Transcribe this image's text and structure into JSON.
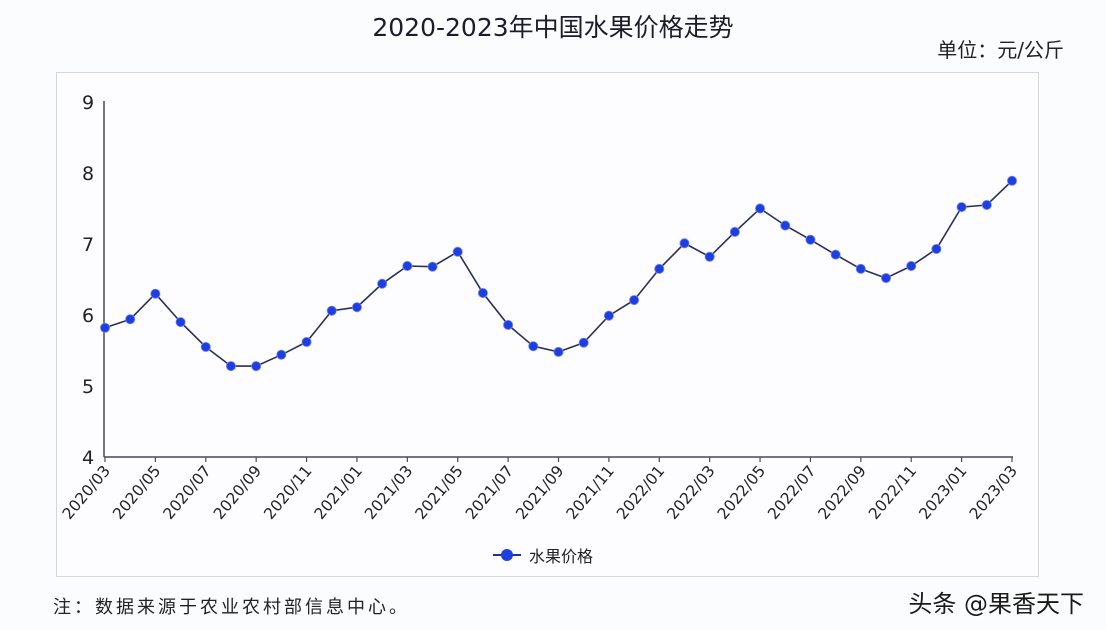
{
  "header": {
    "title": "2020-2023年中国水果价格走势",
    "unit": "单位：元/公斤"
  },
  "legend": {
    "label": "水果价格"
  },
  "footnote": "注：数据来源于农业农村部信息中心。",
  "watermark": "头条 @果香天下",
  "colors": {
    "line": "#2a2f5a",
    "marker": "#1f3ee0",
    "axis": "#4a4a5a",
    "box_border": "#d3d8e0"
  },
  "chart_data": {
    "type": "line",
    "title": "2020-2023年中国水果价格走势",
    "xlabel": "",
    "ylabel": "单位：元/公斤",
    "ylim": [
      4,
      9
    ],
    "yticks": [
      4,
      5,
      6,
      7,
      8,
      9
    ],
    "grid": false,
    "legend_position": "bottom",
    "x": [
      "2020/03",
      "2020/04",
      "2020/05",
      "2020/06",
      "2020/07",
      "2020/08",
      "2020/09",
      "2020/10",
      "2020/11",
      "2020/12",
      "2021/01",
      "2021/02",
      "2021/03",
      "2021/04",
      "2021/05",
      "2021/06",
      "2021/07",
      "2021/08",
      "2021/09",
      "2021/10",
      "2021/11",
      "2021/12",
      "2022/01",
      "2022/02",
      "2022/03",
      "2022/04",
      "2022/05",
      "2022/06",
      "2022/07",
      "2022/08",
      "2022/09",
      "2022/10",
      "2022/11",
      "2022/12",
      "2023/01",
      "2023/02",
      "2023/03"
    ],
    "xtick_labels": [
      "2020/03",
      "2020/05",
      "2020/07",
      "2020/09",
      "2020/11",
      "2021/01",
      "2021/03",
      "2021/05",
      "2021/07",
      "2021/09",
      "2021/11",
      "2022/01",
      "2022/03",
      "2022/05",
      "2022/07",
      "2022/09",
      "2022/11",
      "2023/01",
      "2023/03"
    ],
    "series": [
      {
        "name": "水果价格",
        "values": [
          5.82,
          5.94,
          6.3,
          5.9,
          5.55,
          5.28,
          5.28,
          5.44,
          5.62,
          6.06,
          6.11,
          6.44,
          6.69,
          6.68,
          6.89,
          6.31,
          5.86,
          5.56,
          5.48,
          5.61,
          5.99,
          6.21,
          6.65,
          7.01,
          6.82,
          7.17,
          7.5,
          7.26,
          7.06,
          6.85,
          6.65,
          6.52,
          6.69,
          6.93,
          7.52,
          7.55,
          7.89
        ]
      }
    ]
  }
}
